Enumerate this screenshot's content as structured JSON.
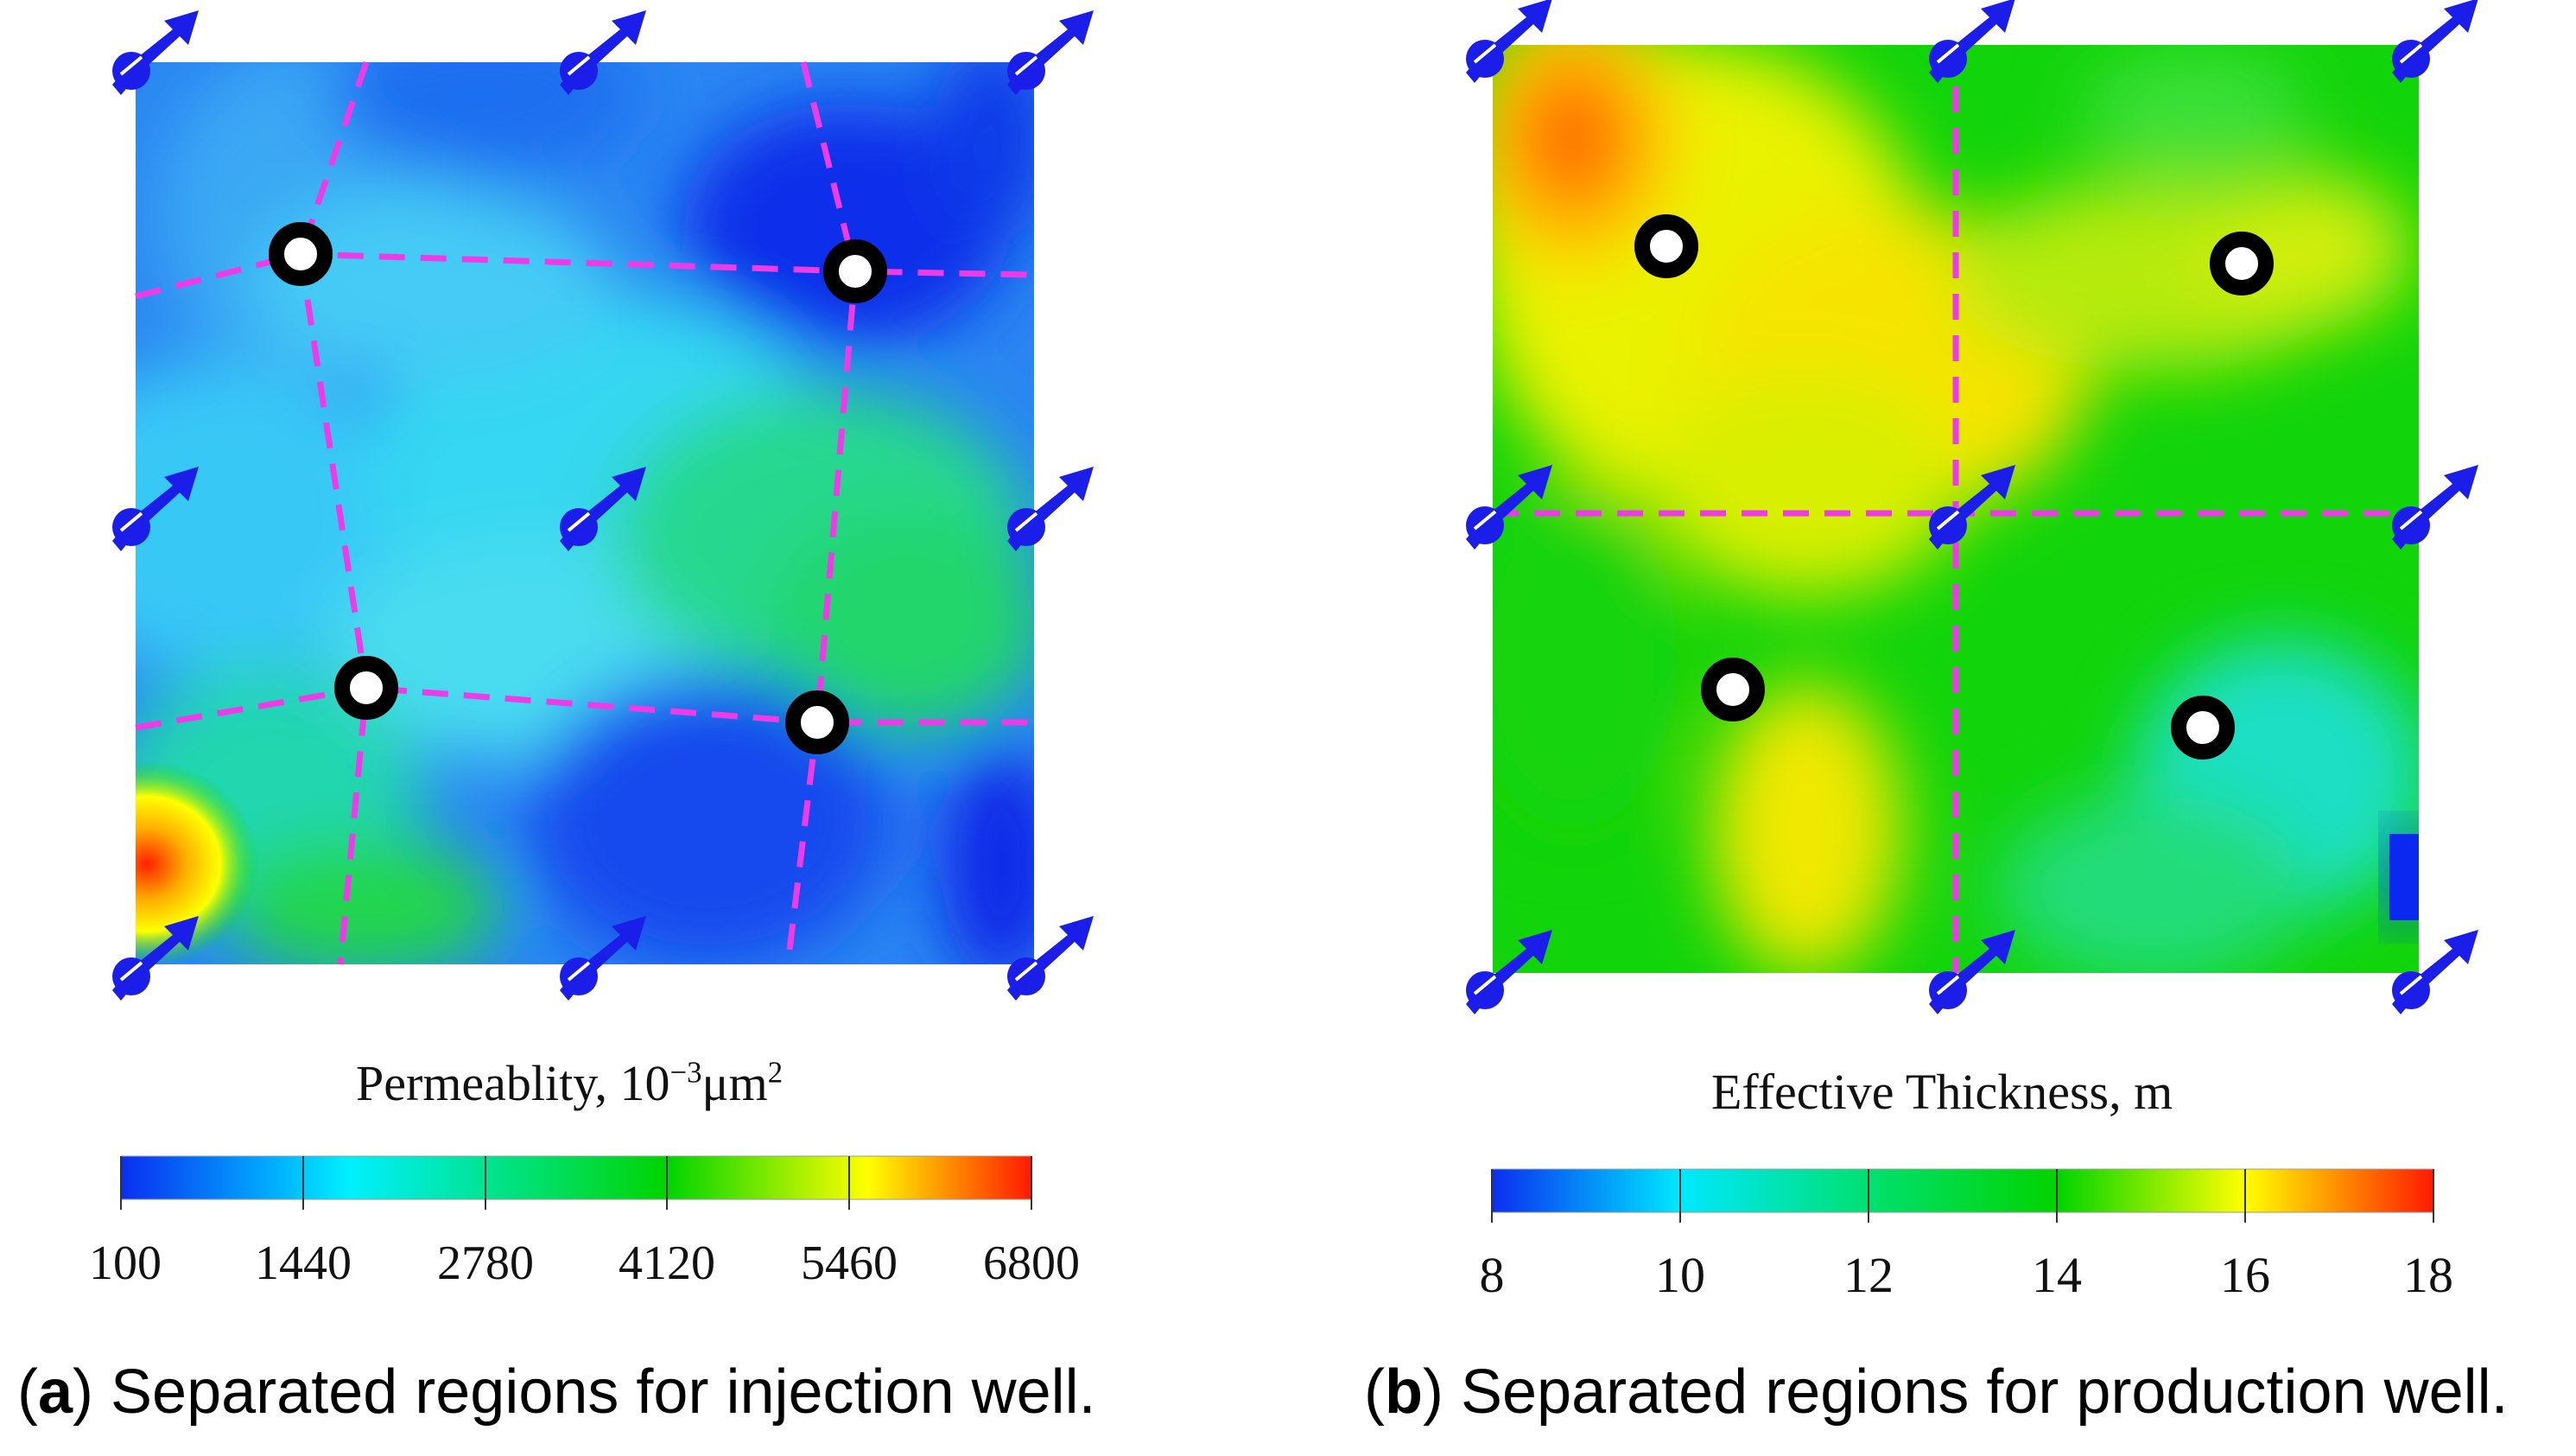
{
  "panel_a": {
    "colorbar_title_main": "Permeablity, 10",
    "colorbar_title_exp": "−3",
    "colorbar_title_unit": "μm",
    "colorbar_title_unit_exp": "2",
    "colorbar_ticks": [
      "100",
      "1440",
      "2780",
      "4120",
      "5460",
      "6800"
    ],
    "caption_letter": "a",
    "caption_text": "Separated regions for injection well.",
    "colors": {
      "scale": [
        "#0033ff",
        "#00e5ff",
        "#00d400",
        "#ffff00",
        "#ff0000"
      ],
      "divider": "#e040e0"
    }
  },
  "panel_b": {
    "colorbar_title": "Effective Thickness, m",
    "colorbar_ticks": [
      "8",
      "10",
      "12",
      "14",
      "16",
      "18"
    ],
    "caption_letter": "b",
    "caption_text": "Separated regions for production well.",
    "colors": {
      "scale": [
        "#0033ff",
        "#00e5ff",
        "#00d400",
        "#ffff00",
        "#ff0000"
      ],
      "divider": "#e040e0"
    }
  },
  "legend_icons": {
    "injection_well_symbol": "blue-arrow-well-icon",
    "production_well_symbol": "black-ring-well-icon"
  }
}
